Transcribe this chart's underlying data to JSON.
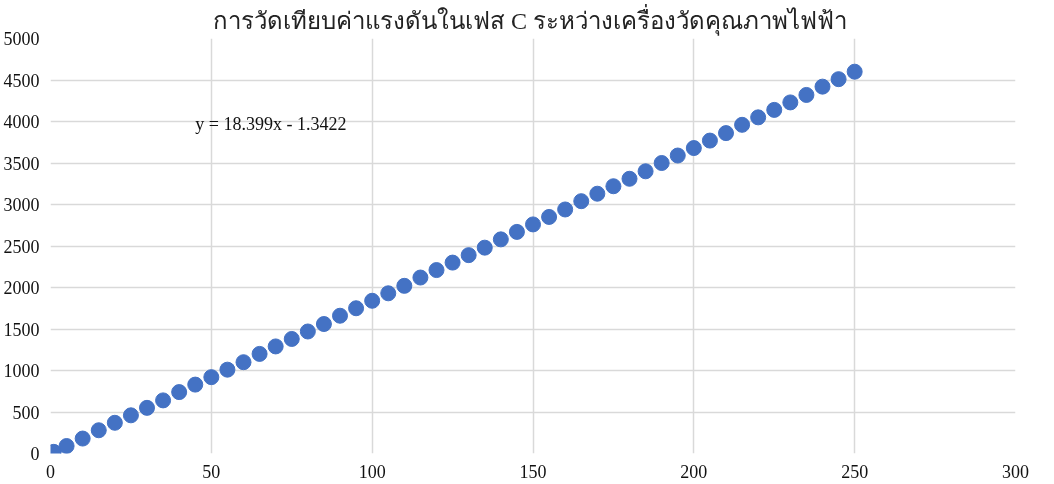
{
  "chart_data": {
    "type": "scatter",
    "title": "การวัดเทียบค่าแรงดันในเฟส C  ระหว่างเครื่องวัดคุณภาพไฟฟ้า",
    "x": [
      1,
      5,
      10,
      15,
      20,
      25,
      30,
      35,
      40,
      45,
      50,
      55,
      60,
      65,
      70,
      75,
      80,
      85,
      90,
      95,
      100,
      105,
      110,
      115,
      120,
      125,
      130,
      135,
      140,
      145,
      150,
      155,
      160,
      165,
      170,
      175,
      180,
      185,
      190,
      195,
      200,
      205,
      210,
      215,
      220,
      225,
      230,
      235,
      240,
      245,
      250
    ],
    "series": [
      {
        "color": "#4472c4",
        "values": [
          20,
          90,
          180,
          280,
          370,
          460,
          550,
          640,
          740,
          830,
          920,
          1010,
          1100,
          1200,
          1290,
          1380,
          1470,
          1560,
          1660,
          1750,
          1840,
          1930,
          2020,
          2120,
          2210,
          2300,
          2390,
          2480,
          2580,
          2670,
          2760,
          2850,
          2940,
          3040,
          3130,
          3220,
          3310,
          3400,
          3500,
          3590,
          3680,
          3770,
          3860,
          3960,
          4050,
          4140,
          4230,
          4320,
          4420,
          4510,
          4600
        ]
      }
    ],
    "annotations": [
      "y = 18.399x - 1.3422"
    ],
    "xlim": [
      0,
      300
    ],
    "xticks": [
      0,
      50,
      100,
      150,
      200,
      250,
      300
    ],
    "ylim": [
      0,
      5000
    ],
    "yticks": [
      0,
      500,
      1000,
      1500,
      2000,
      2500,
      3000,
      3500,
      4000,
      4500,
      5000
    ],
    "grid": true,
    "marker": "circle"
  }
}
